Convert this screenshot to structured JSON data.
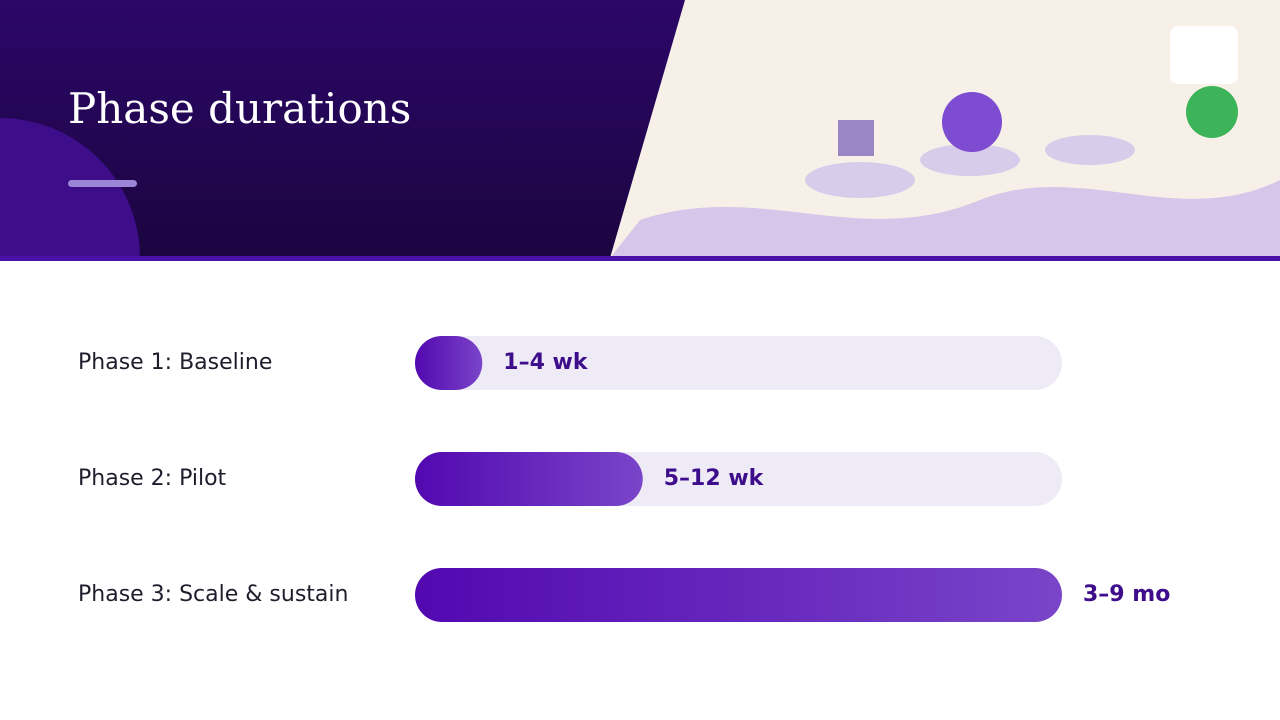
{
  "chart_data": {
    "type": "bar",
    "orientation": "horizontal",
    "title": "Phase durations",
    "categories": [
      "Phase 1: Baseline",
      "Phase 2: Pilot",
      "Phase 3: Scale & sustain"
    ],
    "values": [
      10.4,
      35.2,
      100
    ],
    "duration_labels": [
      "1–4 wk",
      "5–12 wk",
      "3–9 mo"
    ],
    "xlim": [
      0,
      100
    ],
    "colors": [
      "#5208b0",
      "#7a45c9"
    ],
    "track_color": "#eeebf6"
  }
}
